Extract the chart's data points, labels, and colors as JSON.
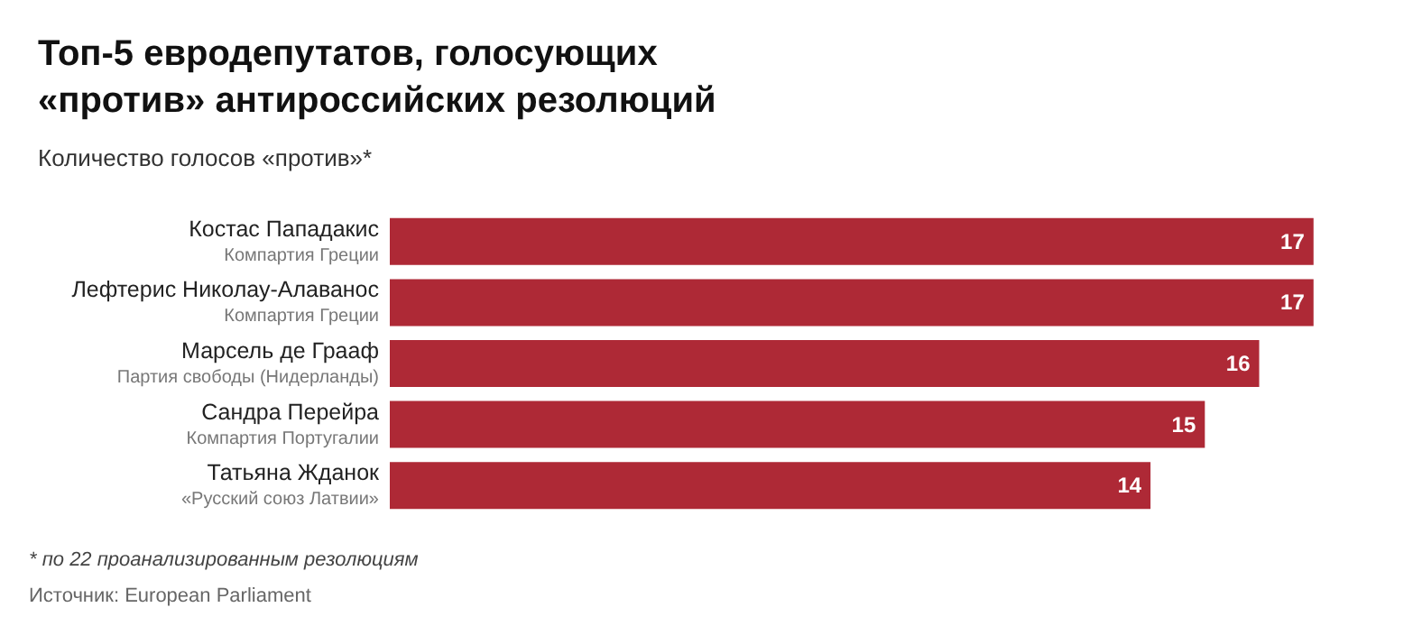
{
  "chart_data": {
    "type": "bar",
    "orientation": "horizontal",
    "title": "Топ-5 евродепутатов, голосующих «против» антироссийских резолюций",
    "subtitle": "Количество голосов «против»*",
    "categories": [
      "Костас Пападакис\nКомпартия Греции",
      "Лефтерис Николау-Алаванос\nКомпартия Греции",
      "Марсель де Грааф\nПартия свободы (Нидерланды)",
      "Сандра Перейра\nКомпартия Португалии",
      "Татьяна Жданок\n«Русский союз Латвии»"
    ],
    "values": [
      17,
      17,
      16,
      15,
      14
    ],
    "color": "#ae2936",
    "data_labels": true,
    "annotations": [
      "* по 22 проанализированным резолюциям",
      "Источник: European Parliament"
    ]
  }
}
